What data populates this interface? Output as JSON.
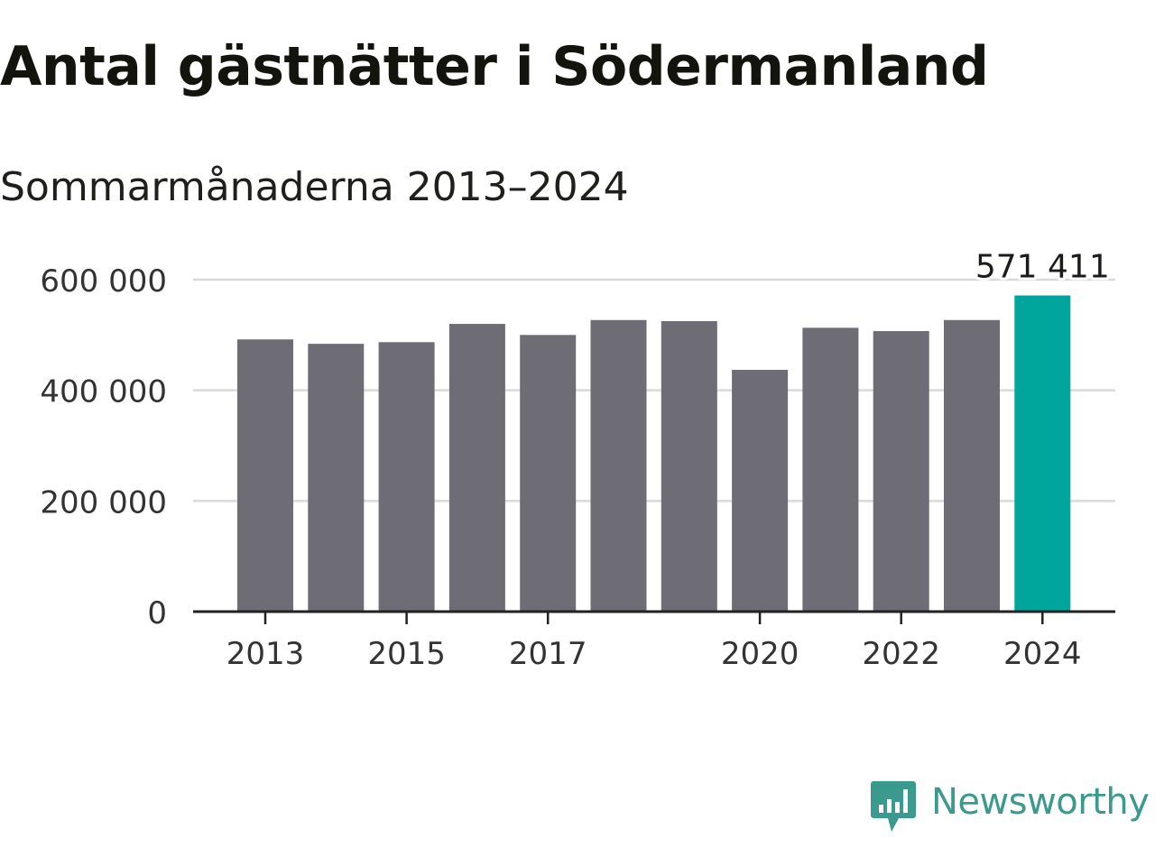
{
  "chart_data": {
    "type": "bar",
    "title": "Antal gästnätter i Södermanland",
    "subtitle": "Sommarmånaderna 2013–2024",
    "xlabel": "",
    "ylabel": "",
    "categories": [
      "2013",
      "2014",
      "2015",
      "2016",
      "2017",
      "2018",
      "2019",
      "2020",
      "2021",
      "2022",
      "2023",
      "2024"
    ],
    "values": [
      492000,
      484000,
      487000,
      520000,
      500000,
      527000,
      525000,
      437000,
      513000,
      507000,
      527000,
      571411
    ],
    "ylim": [
      0,
      600000
    ],
    "yticks": [
      0,
      200000,
      400000,
      600000
    ],
    "ytick_labels": [
      "0",
      "200 000",
      "400 000",
      "600 000"
    ],
    "xtick_labels": [
      "2013",
      "2015",
      "2017",
      "2020",
      "2022",
      "2024"
    ],
    "highlight_label": "571 411",
    "highlight_index": 11,
    "grid": true,
    "colors": {
      "bar": "#6e6d75",
      "highlight": "#00a69c",
      "grid": "#d9d9d9",
      "axis": "#222222",
      "text": "#333333"
    }
  },
  "logo": {
    "text": "Newsworthy",
    "color": "#3a9a8d",
    "icon": "bar-chart-speech-bubble-icon"
  }
}
